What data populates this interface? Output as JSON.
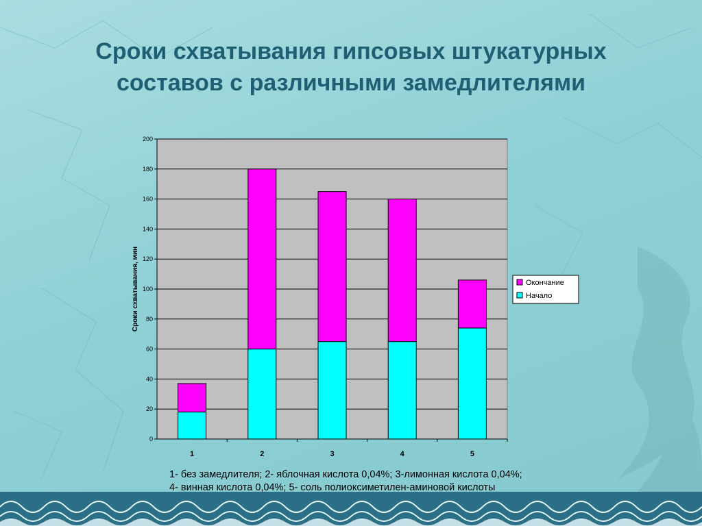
{
  "slide": {
    "title_line1": "Сроки схватывания гипсовых штукатурных",
    "title_line2": "составов с различными замедлителями",
    "note_line1": "1- без замедлителя; 2- яблочная кислота 0,04%; 3-лимонная кислота 0,04%;",
    "note_line2": "4- винная кислота 0,04%; 5- соль полиоксиметилен-аминовой кислоты"
  },
  "chart_data": {
    "type": "bar",
    "stacked": true,
    "categories": [
      "1",
      "2",
      "3",
      "4",
      "5"
    ],
    "series": [
      {
        "name": "Начало",
        "values": [
          18,
          60,
          65,
          65,
          74
        ],
        "color": "#00ffff"
      },
      {
        "name": "Окончание",
        "values": [
          19,
          120,
          100,
          95,
          32
        ],
        "color": "#ff00ff"
      }
    ],
    "legend_order": [
      "Окончание",
      "Начало"
    ],
    "title": "",
    "xlabel": "",
    "ylabel": "Сроки схватывания, мин",
    "ylim": [
      0,
      200
    ],
    "ytick_step": 20,
    "grid": true,
    "legend_position": "right",
    "plot_background": "#c0c0c0"
  }
}
